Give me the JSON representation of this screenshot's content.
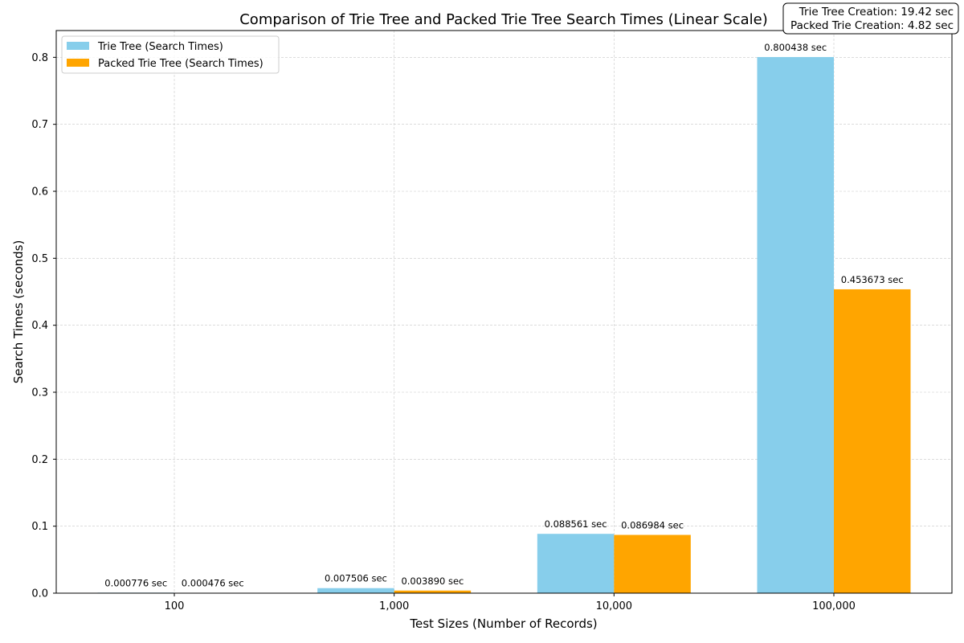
{
  "chart_data": {
    "type": "bar",
    "title": "Comparison of Trie Tree and Packed Trie Tree Search Times (Linear Scale)",
    "xlabel": "Test Sizes (Number of Records)",
    "ylabel": "Search Times (seconds)",
    "categories": [
      "100",
      "1,000",
      "10,000",
      "100,000"
    ],
    "series": [
      {
        "name": "Trie Tree (Search Times)",
        "color": "#87CEEB",
        "values": [
          0.000776,
          0.007506,
          0.088561,
          0.800438
        ],
        "labels": [
          "0.000776 sec",
          "0.007506 sec",
          "0.088561 sec",
          "0.800438 sec"
        ]
      },
      {
        "name": "Packed Trie Tree (Search Times)",
        "color": "#FFA500",
        "values": [
          0.000476,
          0.00389,
          0.086984,
          0.453673
        ],
        "labels": [
          "0.000476 sec",
          "0.003890 sec",
          "0.086984 sec",
          "0.453673 sec"
        ]
      }
    ],
    "ylim": [
      0,
      0.84
    ],
    "yticks": [
      0.0,
      0.1,
      0.2,
      0.3,
      0.4,
      0.5,
      0.6,
      0.7,
      0.8
    ],
    "ytick_labels": [
      "0.0",
      "0.1",
      "0.2",
      "0.3",
      "0.4",
      "0.5",
      "0.6",
      "0.7",
      "0.8"
    ],
    "grid": true,
    "legend_position": "top-left",
    "annotation": [
      "Trie Tree Creation: 19.42 sec",
      "Packed Trie Creation: 4.82 sec"
    ]
  }
}
